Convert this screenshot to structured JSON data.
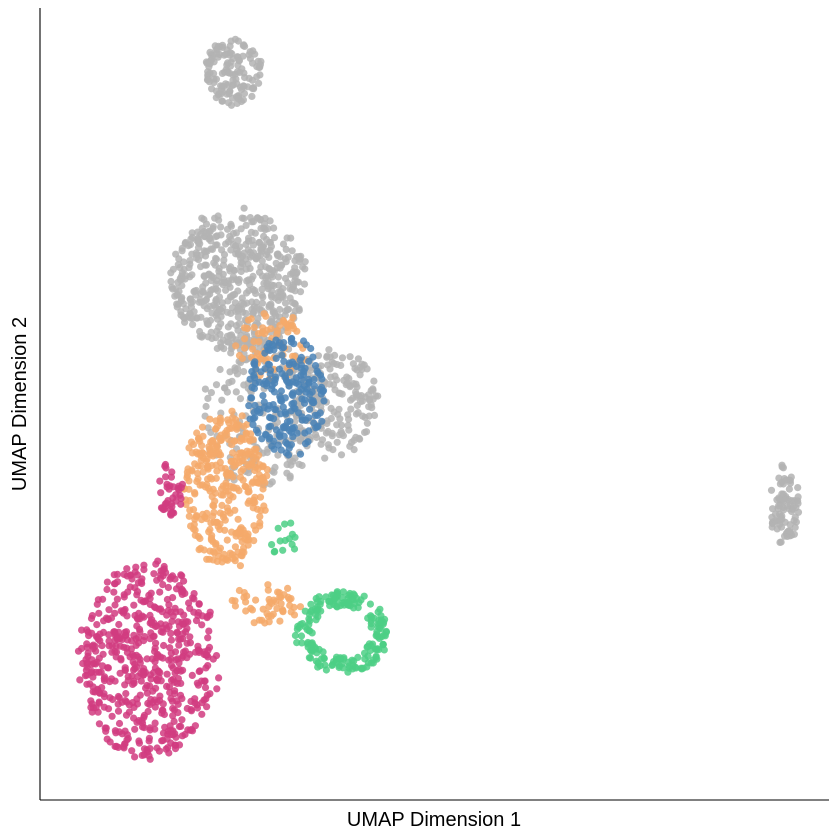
{
  "chart_data": {
    "type": "scatter",
    "xlabel": "UMAP Dimension 1",
    "ylabel": "UMAP Dimension 2",
    "xticks": [],
    "yticks": [],
    "xlim": [
      0,
      100
    ],
    "ylim": [
      0,
      100
    ],
    "grid": false,
    "legend": "none",
    "point_opacity": 0.85,
    "colors": {
      "gray": "#b3b3b3",
      "orange": "#f5a96a",
      "blue": "#4a82b6",
      "pink": "#d13c80",
      "green": "#4ccf85"
    },
    "clusters": [
      {
        "color": "gray",
        "shape": "disc",
        "cx": 24.5,
        "cy": 91.9,
        "rx": 3.8,
        "ry": 4.3,
        "n": 130
      },
      {
        "color": "gray",
        "shape": "disc",
        "cx": 25.1,
        "cy": 65.4,
        "rx": 8.9,
        "ry": 9.5,
        "n": 520
      },
      {
        "color": "gray",
        "shape": "disc",
        "cx": 36.8,
        "cy": 50.2,
        "rx": 6.2,
        "ry": 7.1,
        "n": 190
      },
      {
        "color": "gray",
        "shape": "disc",
        "cx": 27.9,
        "cy": 48.9,
        "rx": 7.7,
        "ry": 10.5,
        "n": 180
      },
      {
        "color": "gray",
        "shape": "disc",
        "cx": 94.4,
        "cy": 37.3,
        "rx": 2.0,
        "ry": 5.5,
        "n": 80
      },
      {
        "color": "orange",
        "shape": "disc",
        "cx": 23.5,
        "cy": 39.2,
        "rx": 5.6,
        "ry": 10.3,
        "n": 330
      },
      {
        "color": "orange",
        "shape": "disc",
        "cx": 29.4,
        "cy": 57.3,
        "rx": 4.8,
        "ry": 4.7,
        "n": 70
      },
      {
        "color": "orange",
        "shape": "disc",
        "cx": 28.6,
        "cy": 24.6,
        "rx": 4.8,
        "ry": 2.8,
        "n": 50
      },
      {
        "color": "blue",
        "shape": "disc",
        "cx": 31.2,
        "cy": 51.1,
        "rx": 5.2,
        "ry": 8.1,
        "n": 210
      },
      {
        "color": "pink",
        "shape": "disc",
        "cx": 13.7,
        "cy": 17.4,
        "rx": 9.1,
        "ry": 13.1,
        "n": 560
      },
      {
        "color": "pink",
        "shape": "disc",
        "cx": 16.5,
        "cy": 39.1,
        "rx": 1.7,
        "ry": 3.6,
        "n": 40
      },
      {
        "color": "green",
        "shape": "ring",
        "cx": 38.3,
        "cy": 21.2,
        "rx": 6.0,
        "ry": 5.2,
        "n": 190
      },
      {
        "color": "green",
        "shape": "disc",
        "cx": 30.8,
        "cy": 33.1,
        "rx": 1.9,
        "ry": 2.5,
        "n": 14
      }
    ]
  }
}
